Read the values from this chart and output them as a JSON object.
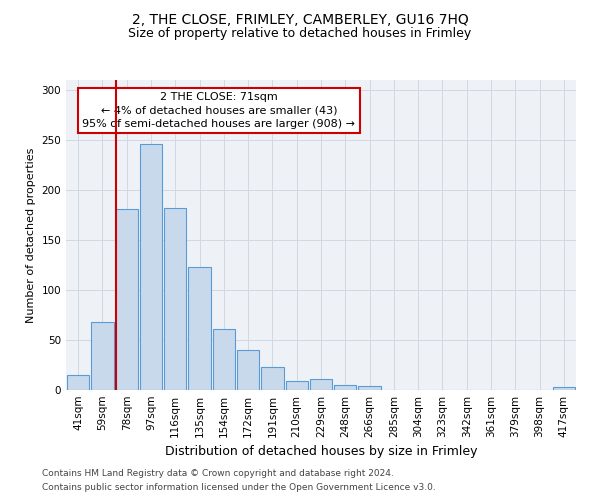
{
  "title1": "2, THE CLOSE, FRIMLEY, CAMBERLEY, GU16 7HQ",
  "title2": "Size of property relative to detached houses in Frimley",
  "xlabel": "Distribution of detached houses by size in Frimley",
  "ylabel": "Number of detached properties",
  "bin_labels": [
    "41sqm",
    "59sqm",
    "78sqm",
    "97sqm",
    "116sqm",
    "135sqm",
    "154sqm",
    "172sqm",
    "191sqm",
    "210sqm",
    "229sqm",
    "248sqm",
    "266sqm",
    "285sqm",
    "304sqm",
    "323sqm",
    "342sqm",
    "361sqm",
    "379sqm",
    "398sqm",
    "417sqm"
  ],
  "bar_values": [
    15,
    68,
    181,
    246,
    182,
    123,
    61,
    40,
    23,
    9,
    11,
    5,
    4,
    0,
    0,
    0,
    0,
    0,
    0,
    0,
    3
  ],
  "bar_color": "#c9d9ec",
  "bar_edgecolor": "#5b9bd5",
  "ref_line_color": "#cc0000",
  "ref_line_x": 1.5,
  "annotation_line1": "2 THE CLOSE: 71sqm",
  "annotation_line2": "← 4% of detached houses are smaller (43)",
  "annotation_line3": "95% of semi-detached houses are larger (908) →",
  "annotation_box_color": "#ffffff",
  "annotation_box_edgecolor": "#cc0000",
  "ylim": [
    0,
    310
  ],
  "yticks": [
    0,
    50,
    100,
    150,
    200,
    250,
    300
  ],
  "grid_color": "#d0d8e4",
  "footer1": "Contains HM Land Registry data © Crown copyright and database right 2024.",
  "footer2": "Contains public sector information licensed under the Open Government Licence v3.0.",
  "title1_fontsize": 10,
  "title2_fontsize": 9,
  "xlabel_fontsize": 9,
  "ylabel_fontsize": 8,
  "tick_fontsize": 7.5,
  "annot_fontsize": 8,
  "footer_fontsize": 6.5
}
